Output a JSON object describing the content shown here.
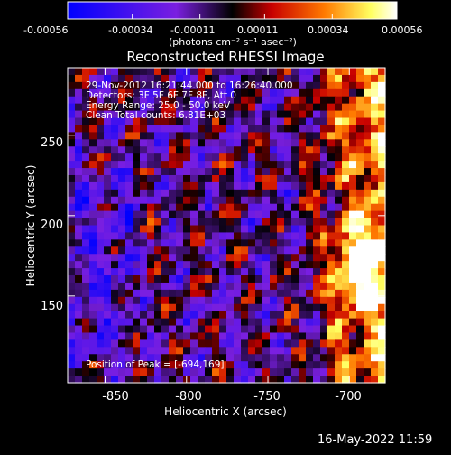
{
  "colorbar": {
    "ticks": [
      "-0.00056",
      "-0.00034",
      "-0.00011",
      "0.00011",
      "0.00034",
      "0.00056"
    ],
    "unit_label": "(photons cm⁻² s⁻¹ asec⁻²)"
  },
  "plot": {
    "title": "Reconstructed RHESSI Image",
    "info_lines": [
      "29-Nov-2012 16:21:44.000 to 16:26:40.000",
      "Detectors: 3F 5F 6F 7F 8F, Att 0",
      "Energy Range: 25.0 - 50.0 keV",
      "Clean     Total counts: 6.81E+03"
    ],
    "peak_label": "Position of Peak = [-694,169]"
  },
  "timestamp": "16-May-2022 11:59",
  "chart_data": {
    "type": "heatmap",
    "title": "Reconstructed RHESSI Image",
    "xlabel": "Heliocentric X (arcsec)",
    "ylabel": "Heliocentric Y (arcsec)",
    "xlim": [
      -873,
      -678
    ],
    "ylim": [
      96,
      292
    ],
    "x_ticks": [
      -850,
      -800,
      -750,
      -700
    ],
    "y_ticks": [
      150,
      200,
      250
    ],
    "colorbar_range": [
      -0.00056,
      0.00056
    ],
    "colormap": [
      "#0000ff",
      "#7a1fe0",
      "#000000",
      "#c80000",
      "#ff7a00",
      "#ffff60",
      "#ffffff"
    ],
    "peak_position": [
      -694,
      169
    ]
  }
}
